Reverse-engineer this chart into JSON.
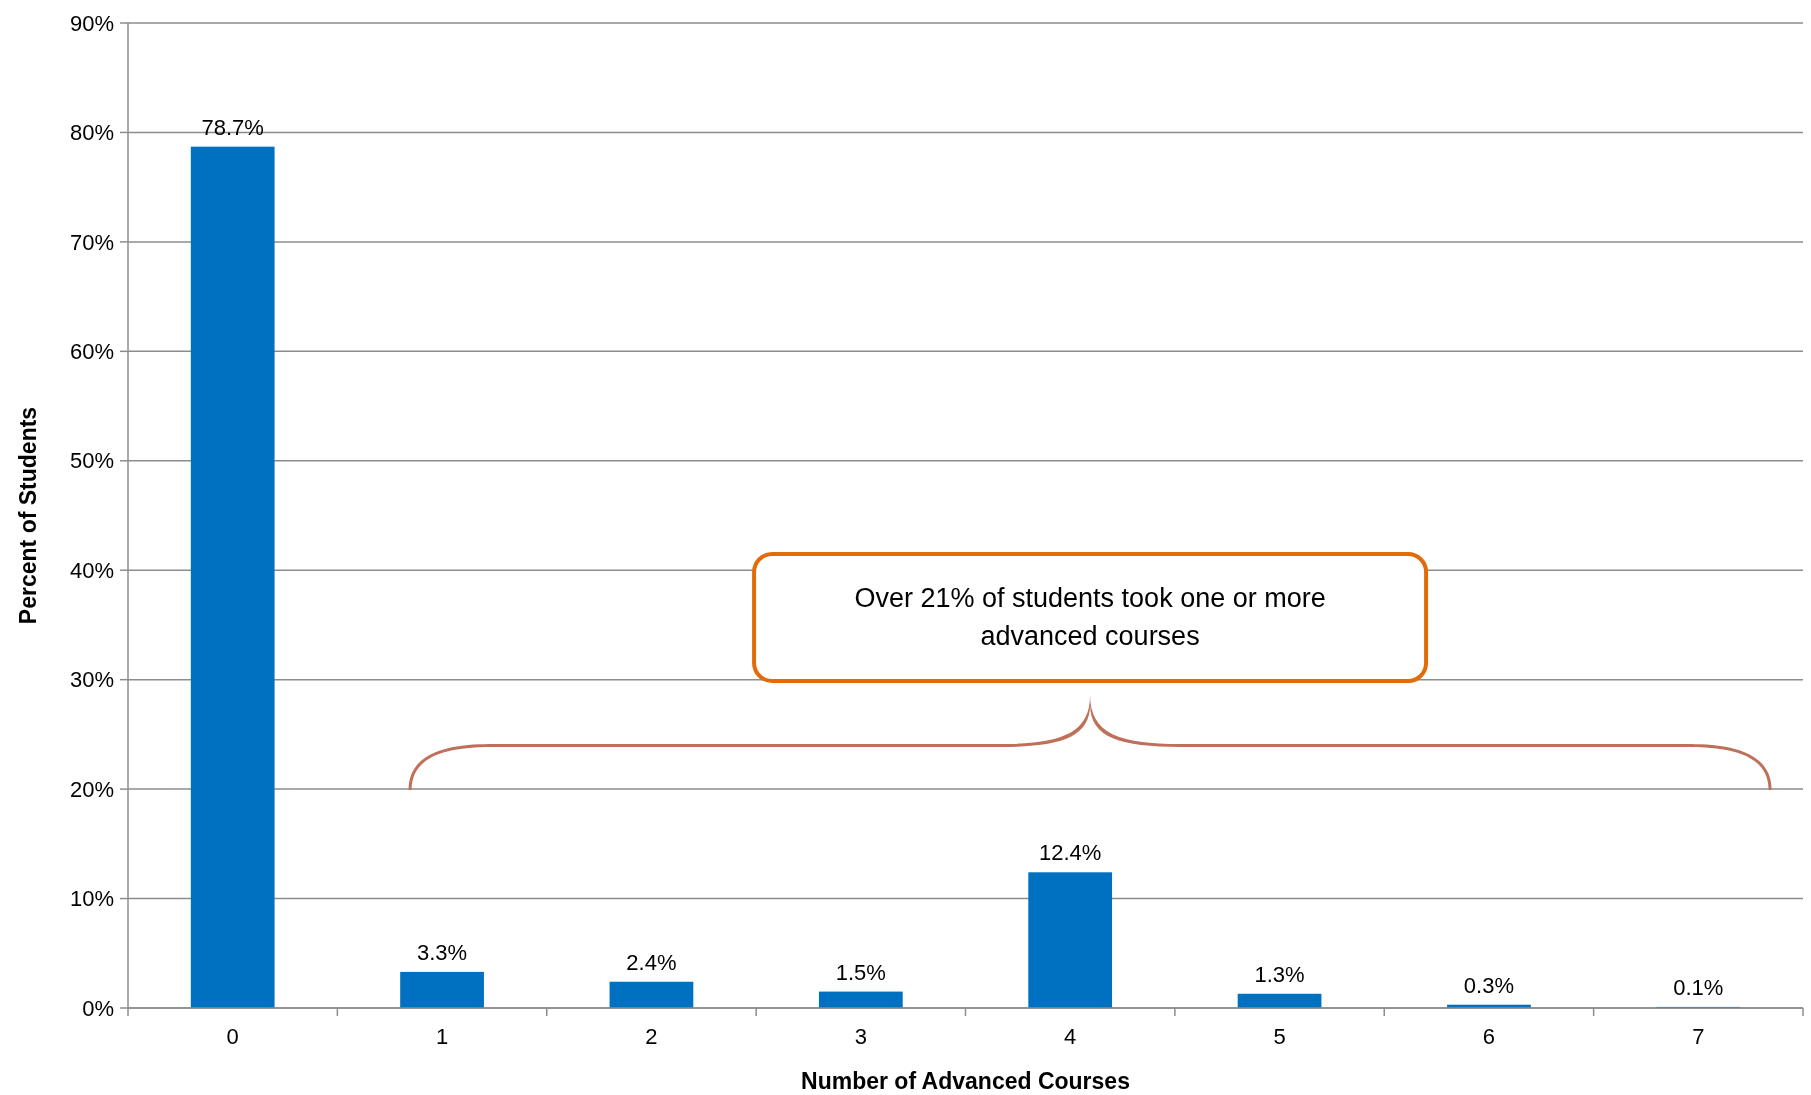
{
  "chart_data": {
    "type": "bar",
    "xlabel": "Number of Advanced Courses",
    "ylabel": "Percent of Students",
    "categories": [
      "0",
      "1",
      "2",
      "3",
      "4",
      "5",
      "6",
      "7"
    ],
    "values": [
      78.7,
      3.3,
      2.4,
      1.5,
      12.4,
      1.3,
      0.3,
      0.1
    ],
    "value_labels": [
      "78.7%",
      "3.3%",
      "2.4%",
      "1.5%",
      "12.4%",
      "1.3%",
      "0.3%",
      "0.1%"
    ],
    "color": "#0070c0",
    "ylim": [
      0,
      90
    ],
    "yticks": [
      {
        "value": 0,
        "label": "0%"
      },
      {
        "value": 10,
        "label": "10%"
      },
      {
        "value": 20,
        "label": "20%"
      },
      {
        "value": 30,
        "label": "30%"
      },
      {
        "value": 40,
        "label": "40%"
      },
      {
        "value": 50,
        "label": "50%"
      },
      {
        "value": 60,
        "label": "60%"
      },
      {
        "value": 70,
        "label": "70%"
      },
      {
        "value": 80,
        "label": "80%"
      },
      {
        "value": 90,
        "label": "90%"
      }
    ],
    "grid": "y",
    "annotations": [
      "Over 21% of students took one or more advanced courses"
    ]
  }
}
